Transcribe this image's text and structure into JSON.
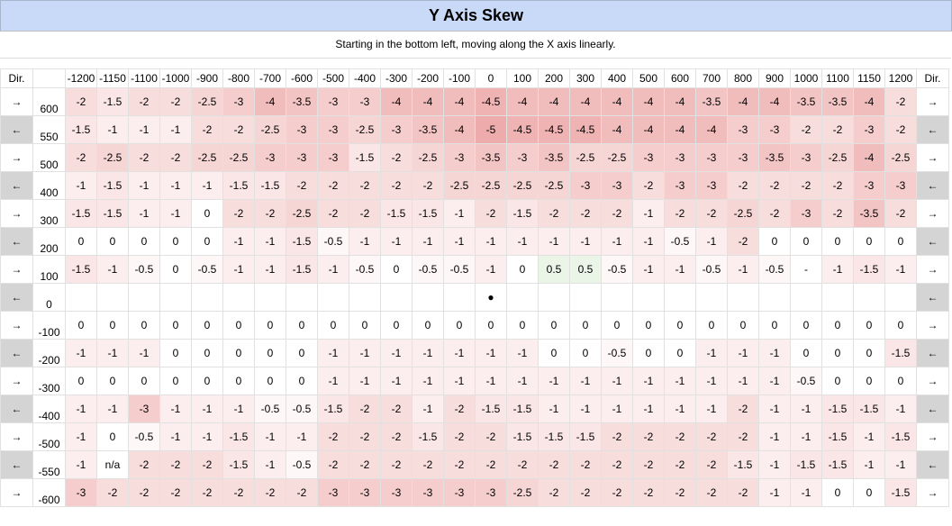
{
  "title": "Y Axis Skew",
  "subtitle": "Starting in the bottom left, moving along the X axis linearly.",
  "dir_header": "Dir.",
  "x_headers": [
    "-1200",
    "-1150",
    "-1100",
    "-1000",
    "-900",
    "-800",
    "-700",
    "-600",
    "-500",
    "-400",
    "-300",
    "-200",
    "-100",
    "0",
    "100",
    "200",
    "300",
    "400",
    "500",
    "600",
    "700",
    "800",
    "900",
    "1000",
    "1100",
    "1150",
    "1200"
  ],
  "arrow_right": "→",
  "arrow_left": "←",
  "origin_marker": "●",
  "colors": {
    "header_blue": "#c9daf8",
    "left_arrow_fill": "#d4d4d4",
    "positive_fill": "#eaf5e8",
    "negative_max": "#e06666"
  },
  "rows": [
    {
      "y": "600",
      "dir": "right",
      "values": [
        "-2",
        "-1.5",
        "-2",
        "-2",
        "-2.5",
        "-3",
        "-4",
        "-3.5",
        "-3",
        "-3",
        "-4",
        "-4",
        "-4",
        "-4.5",
        "-4",
        "-4",
        "-4",
        "-4",
        "-4",
        "-4",
        "-3.5",
        "-4",
        "-4",
        "-3.5",
        "-3.5",
        "-4",
        "-2"
      ]
    },
    {
      "y": "550",
      "dir": "left",
      "values": [
        "-1.5",
        "-1",
        "-1",
        "-1",
        "-2",
        "-2",
        "-2.5",
        "-3",
        "-3",
        "-2.5",
        "-3",
        "-3.5",
        "-4",
        "-5",
        "-4.5",
        "-4.5",
        "-4.5",
        "-4",
        "-4",
        "-4",
        "-4",
        "-3",
        "-3",
        "-2",
        "-2",
        "-3",
        "-2"
      ]
    },
    {
      "y": "500",
      "dir": "right",
      "values": [
        "-2",
        "-2.5",
        "-2",
        "-2",
        "-2.5",
        "-2.5",
        "-3",
        "-3",
        "-3",
        "-1.5",
        "-2",
        "-2.5",
        "-3",
        "-3.5",
        "-3",
        "-3.5",
        "-2.5",
        "-2.5",
        "-3",
        "-3",
        "-3",
        "-3",
        "-3.5",
        "-3",
        "-2.5",
        "-4",
        "-2.5"
      ]
    },
    {
      "y": "400",
      "dir": "left",
      "values": [
        "-1",
        "-1.5",
        "-1",
        "-1",
        "-1",
        "-1.5",
        "-1.5",
        "-2",
        "-2",
        "-2",
        "-2",
        "-2",
        "-2.5",
        "-2.5",
        "-2.5",
        "-2.5",
        "-3",
        "-3",
        "-2",
        "-3",
        "-3",
        "-2",
        "-2",
        "-2",
        "-2",
        "-3",
        "-3"
      ]
    },
    {
      "y": "300",
      "dir": "right",
      "values": [
        "-1.5",
        "-1.5",
        "-1",
        "-1",
        "0",
        "-2",
        "-2",
        "-2.5",
        "-2",
        "-2",
        "-1.5",
        "-1.5",
        "-1",
        "-2",
        "-1.5",
        "-2",
        "-2",
        "-2",
        "-1",
        "-2",
        "-2",
        "-2.5",
        "-2",
        "-3",
        "-2",
        "-3.5",
        "-2"
      ]
    },
    {
      "y": "200",
      "dir": "left",
      "values": [
        "0",
        "0",
        "0",
        "0",
        "0",
        "-1",
        "-1",
        "-1.5",
        "-0.5",
        "-1",
        "-1",
        "-1",
        "-1",
        "-1",
        "-1",
        "-1",
        "-1",
        "-1",
        "-1",
        "-0.5",
        "-1",
        "-2",
        "0",
        "0",
        "0",
        "0",
        "0"
      ]
    },
    {
      "y": "100",
      "dir": "right",
      "values": [
        "-1.5",
        "-1",
        "-0.5",
        "0",
        "-0.5",
        "-1",
        "-1",
        "-1.5",
        "-1",
        "-0.5",
        "0",
        "-0.5",
        "-0.5",
        "-1",
        "0",
        "0.5",
        "0.5",
        "-0.5",
        "-1",
        "-1",
        "-0.5",
        "-1",
        "-0.5",
        "-",
        "-1",
        "-1.5",
        "-1"
      ]
    },
    {
      "y": "0",
      "dir": "left",
      "values": [
        "",
        "",
        "",
        "",
        "",
        "",
        "",
        "",
        "",
        "",
        "",
        "",
        "",
        "●",
        "",
        "",
        "",
        "",
        "",
        "",
        "",
        "",
        "",
        "",
        "",
        "",
        ""
      ]
    },
    {
      "y": "-100",
      "dir": "right",
      "values": [
        "0",
        "0",
        "0",
        "0",
        "0",
        "0",
        "0",
        "0",
        "0",
        "0",
        "0",
        "0",
        "0",
        "0",
        "0",
        "0",
        "0",
        "0",
        "0",
        "0",
        "0",
        "0",
        "0",
        "0",
        "0",
        "0",
        "0"
      ]
    },
    {
      "y": "-200",
      "dir": "left",
      "values": [
        "-1",
        "-1",
        "-1",
        "0",
        "0",
        "0",
        "0",
        "0",
        "-1",
        "-1",
        "-1",
        "-1",
        "-1",
        "-1",
        "-1",
        "0",
        "0",
        "-0.5",
        "0",
        "0",
        "-1",
        "-1",
        "-1",
        "0",
        "0",
        "0",
        "-1.5"
      ]
    },
    {
      "y": "-300",
      "dir": "right",
      "values": [
        "0",
        "0",
        "0",
        "0",
        "0",
        "0",
        "0",
        "0",
        "-1",
        "-1",
        "-1",
        "-1",
        "-1",
        "-1",
        "-1",
        "-1",
        "-1",
        "-1",
        "-1",
        "-1",
        "-1",
        "-1",
        "-1",
        "-0.5",
        "0",
        "0",
        "0"
      ]
    },
    {
      "y": "-400",
      "dir": "left",
      "values": [
        "-1",
        "-1",
        "-3",
        "-1",
        "-1",
        "-1",
        "-0.5",
        "-0.5",
        "-1.5",
        "-2",
        "-2",
        "-1",
        "-2",
        "-1.5",
        "-1.5",
        "-1",
        "-1",
        "-1",
        "-1",
        "-1",
        "-1",
        "-2",
        "-1",
        "-1",
        "-1.5",
        "-1.5",
        "-1"
      ]
    },
    {
      "y": "-500",
      "dir": "right",
      "values": [
        "-1",
        "0",
        "-0.5",
        "-1",
        "-1",
        "-1.5",
        "-1",
        "-1",
        "-2",
        "-2",
        "-2",
        "-1.5",
        "-2",
        "-2",
        "-1.5",
        "-1.5",
        "-1.5",
        "-2",
        "-2",
        "-2",
        "-2",
        "-2",
        "-1",
        "-1",
        "-1.5",
        "-1",
        "-1.5"
      ]
    },
    {
      "y": "-550",
      "dir": "left",
      "values": [
        "-1",
        "n/a",
        "-2",
        "-2",
        "-2",
        "-1.5",
        "-1",
        "-0.5",
        "-2",
        "-2",
        "-2",
        "-2",
        "-2",
        "-2",
        "-2",
        "-2",
        "-2",
        "-2",
        "-2",
        "-2",
        "-2",
        "-1.5",
        "-1",
        "-1.5",
        "-1.5",
        "-1",
        "-1"
      ]
    },
    {
      "y": "-600",
      "dir": "right",
      "values": [
        "-3",
        "-2",
        "-2",
        "-2",
        "-2",
        "-2",
        "-2",
        "-2",
        "-3",
        "-3",
        "-3",
        "-3",
        "-3",
        "-3",
        "-2.5",
        "-2",
        "-2",
        "-2",
        "-2",
        "-2",
        "-2",
        "-2",
        "-1",
        "-1",
        "0",
        "0",
        "-1.5"
      ]
    }
  ]
}
